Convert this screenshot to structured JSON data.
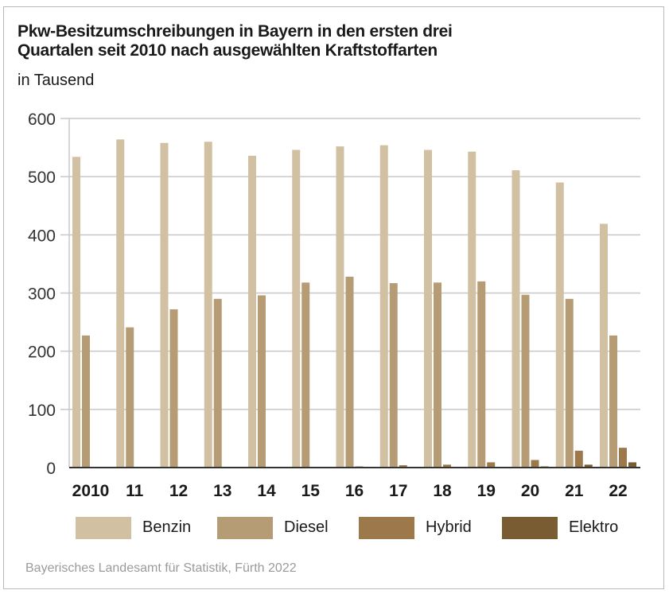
{
  "chart_data": {
    "type": "bar",
    "title": "Pkw-Besitzumschreibungen in Bayern in den ersten drei Quartalen seit 2010 nach ausgewählten Kraftstoffarten",
    "title_line1": "Pkw-Besitzumschreibungen in Bayern in den ersten drei",
    "title_line2": "Quartalen seit 2010 nach ausgewählten Kraftstoffarten",
    "subtitle": "in Tausend",
    "xlabel": "",
    "ylabel": "",
    "ylim": [
      0,
      600
    ],
    "yticks": [
      0,
      100,
      200,
      300,
      400,
      500,
      600
    ],
    "grid": true,
    "legend_position": "bottom",
    "categories": [
      "2010",
      "11",
      "12",
      "13",
      "14",
      "15",
      "16",
      "17",
      "18",
      "19",
      "20",
      "21",
      "22"
    ],
    "series": [
      {
        "name": "Benzin",
        "color": "#d1c0a1",
        "values": [
          534,
          564,
          558,
          560,
          536,
          546,
          552,
          554,
          546,
          543,
          511,
          490,
          419
        ]
      },
      {
        "name": "Diesel",
        "color": "#b59c75",
        "values": [
          227,
          241,
          272,
          290,
          296,
          318,
          328,
          317,
          318,
          320,
          297,
          290,
          227
        ]
      },
      {
        "name": "Hybrid",
        "color": "#9c784a",
        "values": [
          0,
          0,
          1,
          1,
          1,
          1,
          2,
          4,
          5,
          9,
          13,
          29,
          34
        ]
      },
      {
        "name": "Elektro",
        "color": "#7a5c33",
        "values": [
          0,
          0,
          0,
          0,
          0,
          0,
          0,
          1,
          1,
          1,
          2,
          5,
          9
        ]
      }
    ],
    "source": "Bayerisches Landesamt für Statistik, Fürth 2022"
  }
}
